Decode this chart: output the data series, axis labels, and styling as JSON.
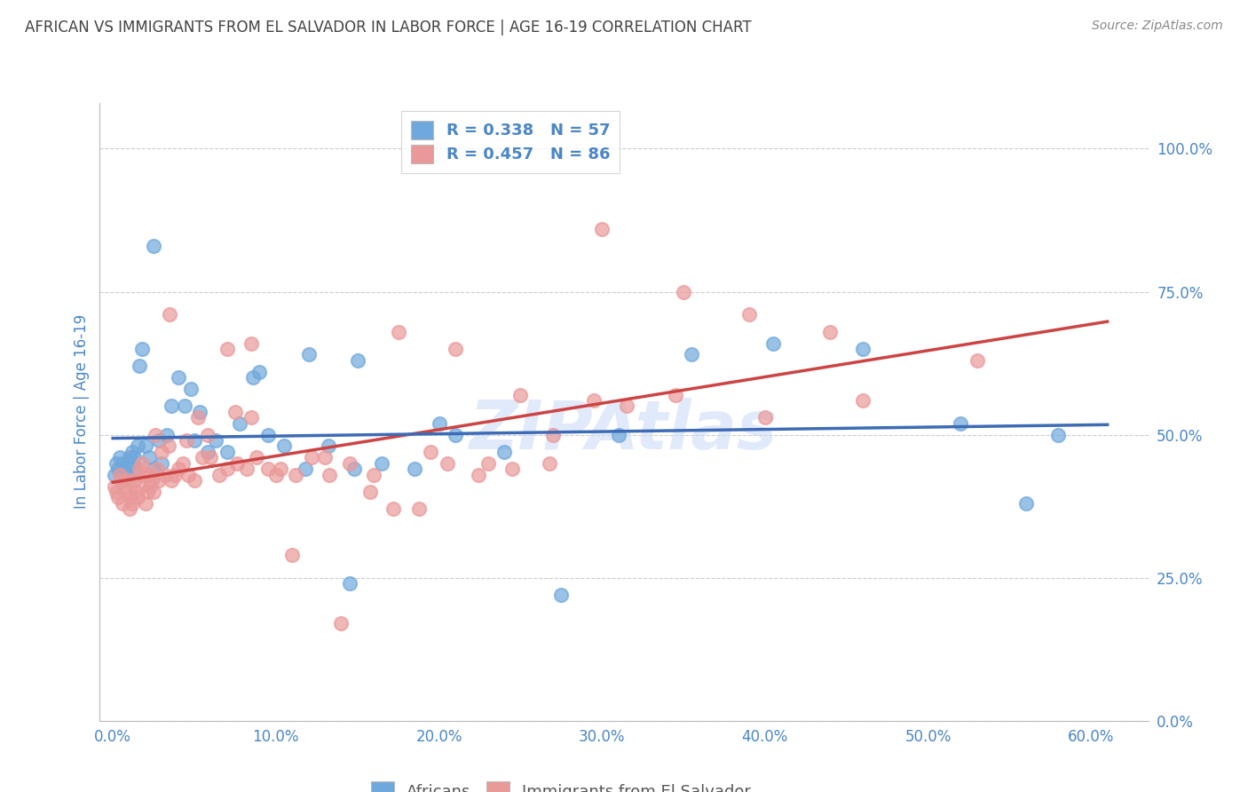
{
  "title": "AFRICAN VS IMMIGRANTS FROM EL SALVADOR IN LABOR FORCE | AGE 16-19 CORRELATION CHART",
  "source": "Source: ZipAtlas.com",
  "xlabel_ticks": [
    "0.0%",
    "10.0%",
    "20.0%",
    "30.0%",
    "40.0%",
    "50.0%",
    "60.0%"
  ],
  "ylabel_ticks": [
    "0.0%",
    "25.0%",
    "50.0%",
    "75.0%",
    "100.0%"
  ],
  "xlabel_ticks_val": [
    0.0,
    0.1,
    0.2,
    0.3,
    0.4,
    0.5,
    0.6
  ],
  "ylabel_ticks_val": [
    0.0,
    0.25,
    0.5,
    0.75,
    1.0
  ],
  "xlim": [
    -0.008,
    0.635
  ],
  "ylim": [
    0.05,
    1.08
  ],
  "ylabel": "In Labor Force | Age 16-19",
  "legend_labels": [
    "Africans",
    "Immigrants from El Salvador"
  ],
  "R_blue": 0.338,
  "N_blue": 57,
  "R_pink": 0.457,
  "N_pink": 86,
  "watermark": "ZIPAtlas",
  "blue_color": "#6fa8dc",
  "pink_color": "#ea9999",
  "blue_line_color": "#3d6bb5",
  "pink_line_color": "#cc4444",
  "title_color": "#434343",
  "axis_label_color": "#4a86c8",
  "legend_text_color": "#4a86c8",
  "grid_color": "#cccccc",
  "blue_scatter_x": [
    0.001,
    0.002,
    0.003,
    0.004,
    0.005,
    0.006,
    0.007,
    0.008,
    0.009,
    0.01,
    0.011,
    0.012,
    0.013,
    0.014,
    0.015,
    0.016,
    0.018,
    0.02,
    0.022,
    0.025,
    0.028,
    0.03,
    0.033,
    0.036,
    0.04,
    0.044,
    0.048,
    0.053,
    0.058,
    0.063,
    0.07,
    0.078,
    0.086,
    0.095,
    0.105,
    0.118,
    0.132,
    0.148,
    0.165,
    0.185,
    0.21,
    0.24,
    0.275,
    0.145,
    0.31,
    0.355,
    0.405,
    0.46,
    0.52,
    0.56,
    0.58,
    0.05,
    0.025,
    0.2,
    0.15,
    0.09,
    0.12
  ],
  "blue_scatter_y": [
    0.43,
    0.45,
    0.44,
    0.46,
    0.43,
    0.45,
    0.42,
    0.44,
    0.43,
    0.46,
    0.45,
    0.47,
    0.46,
    0.44,
    0.48,
    0.62,
    0.65,
    0.48,
    0.46,
    0.44,
    0.49,
    0.45,
    0.5,
    0.55,
    0.6,
    0.55,
    0.58,
    0.54,
    0.47,
    0.49,
    0.47,
    0.52,
    0.6,
    0.5,
    0.48,
    0.44,
    0.48,
    0.44,
    0.45,
    0.44,
    0.5,
    0.47,
    0.22,
    0.24,
    0.5,
    0.64,
    0.66,
    0.65,
    0.52,
    0.38,
    0.5,
    0.49,
    0.83,
    0.52,
    0.63,
    0.61,
    0.64
  ],
  "pink_scatter_x": [
    0.001,
    0.002,
    0.003,
    0.004,
    0.005,
    0.006,
    0.007,
    0.008,
    0.009,
    0.01,
    0.011,
    0.012,
    0.013,
    0.014,
    0.015,
    0.016,
    0.017,
    0.018,
    0.019,
    0.02,
    0.021,
    0.022,
    0.023,
    0.024,
    0.025,
    0.026,
    0.027,
    0.028,
    0.03,
    0.032,
    0.034,
    0.036,
    0.038,
    0.04,
    0.043,
    0.046,
    0.05,
    0.055,
    0.06,
    0.065,
    0.07,
    0.076,
    0.082,
    0.088,
    0.095,
    0.103,
    0.112,
    0.122,
    0.133,
    0.145,
    0.158,
    0.172,
    0.188,
    0.205,
    0.224,
    0.245,
    0.268,
    0.1,
    0.13,
    0.16,
    0.195,
    0.23,
    0.27,
    0.315,
    0.035,
    0.045,
    0.052,
    0.058,
    0.075,
    0.085,
    0.11,
    0.14,
    0.175,
    0.21,
    0.25,
    0.295,
    0.345,
    0.4,
    0.46,
    0.53,
    0.07,
    0.085,
    0.3,
    0.35,
    0.39,
    0.44
  ],
  "pink_scatter_y": [
    0.41,
    0.4,
    0.39,
    0.43,
    0.42,
    0.38,
    0.41,
    0.4,
    0.42,
    0.37,
    0.39,
    0.38,
    0.42,
    0.4,
    0.39,
    0.44,
    0.41,
    0.45,
    0.43,
    0.38,
    0.4,
    0.43,
    0.41,
    0.42,
    0.4,
    0.5,
    0.44,
    0.42,
    0.47,
    0.43,
    0.48,
    0.42,
    0.43,
    0.44,
    0.45,
    0.43,
    0.42,
    0.46,
    0.46,
    0.43,
    0.44,
    0.45,
    0.44,
    0.46,
    0.44,
    0.44,
    0.43,
    0.46,
    0.43,
    0.45,
    0.4,
    0.37,
    0.37,
    0.45,
    0.43,
    0.44,
    0.45,
    0.43,
    0.46,
    0.43,
    0.47,
    0.45,
    0.5,
    0.55,
    0.71,
    0.49,
    0.53,
    0.5,
    0.54,
    0.53,
    0.29,
    0.17,
    0.68,
    0.65,
    0.57,
    0.56,
    0.57,
    0.53,
    0.56,
    0.63,
    0.65,
    0.66,
    0.86,
    0.75,
    0.71,
    0.68
  ]
}
